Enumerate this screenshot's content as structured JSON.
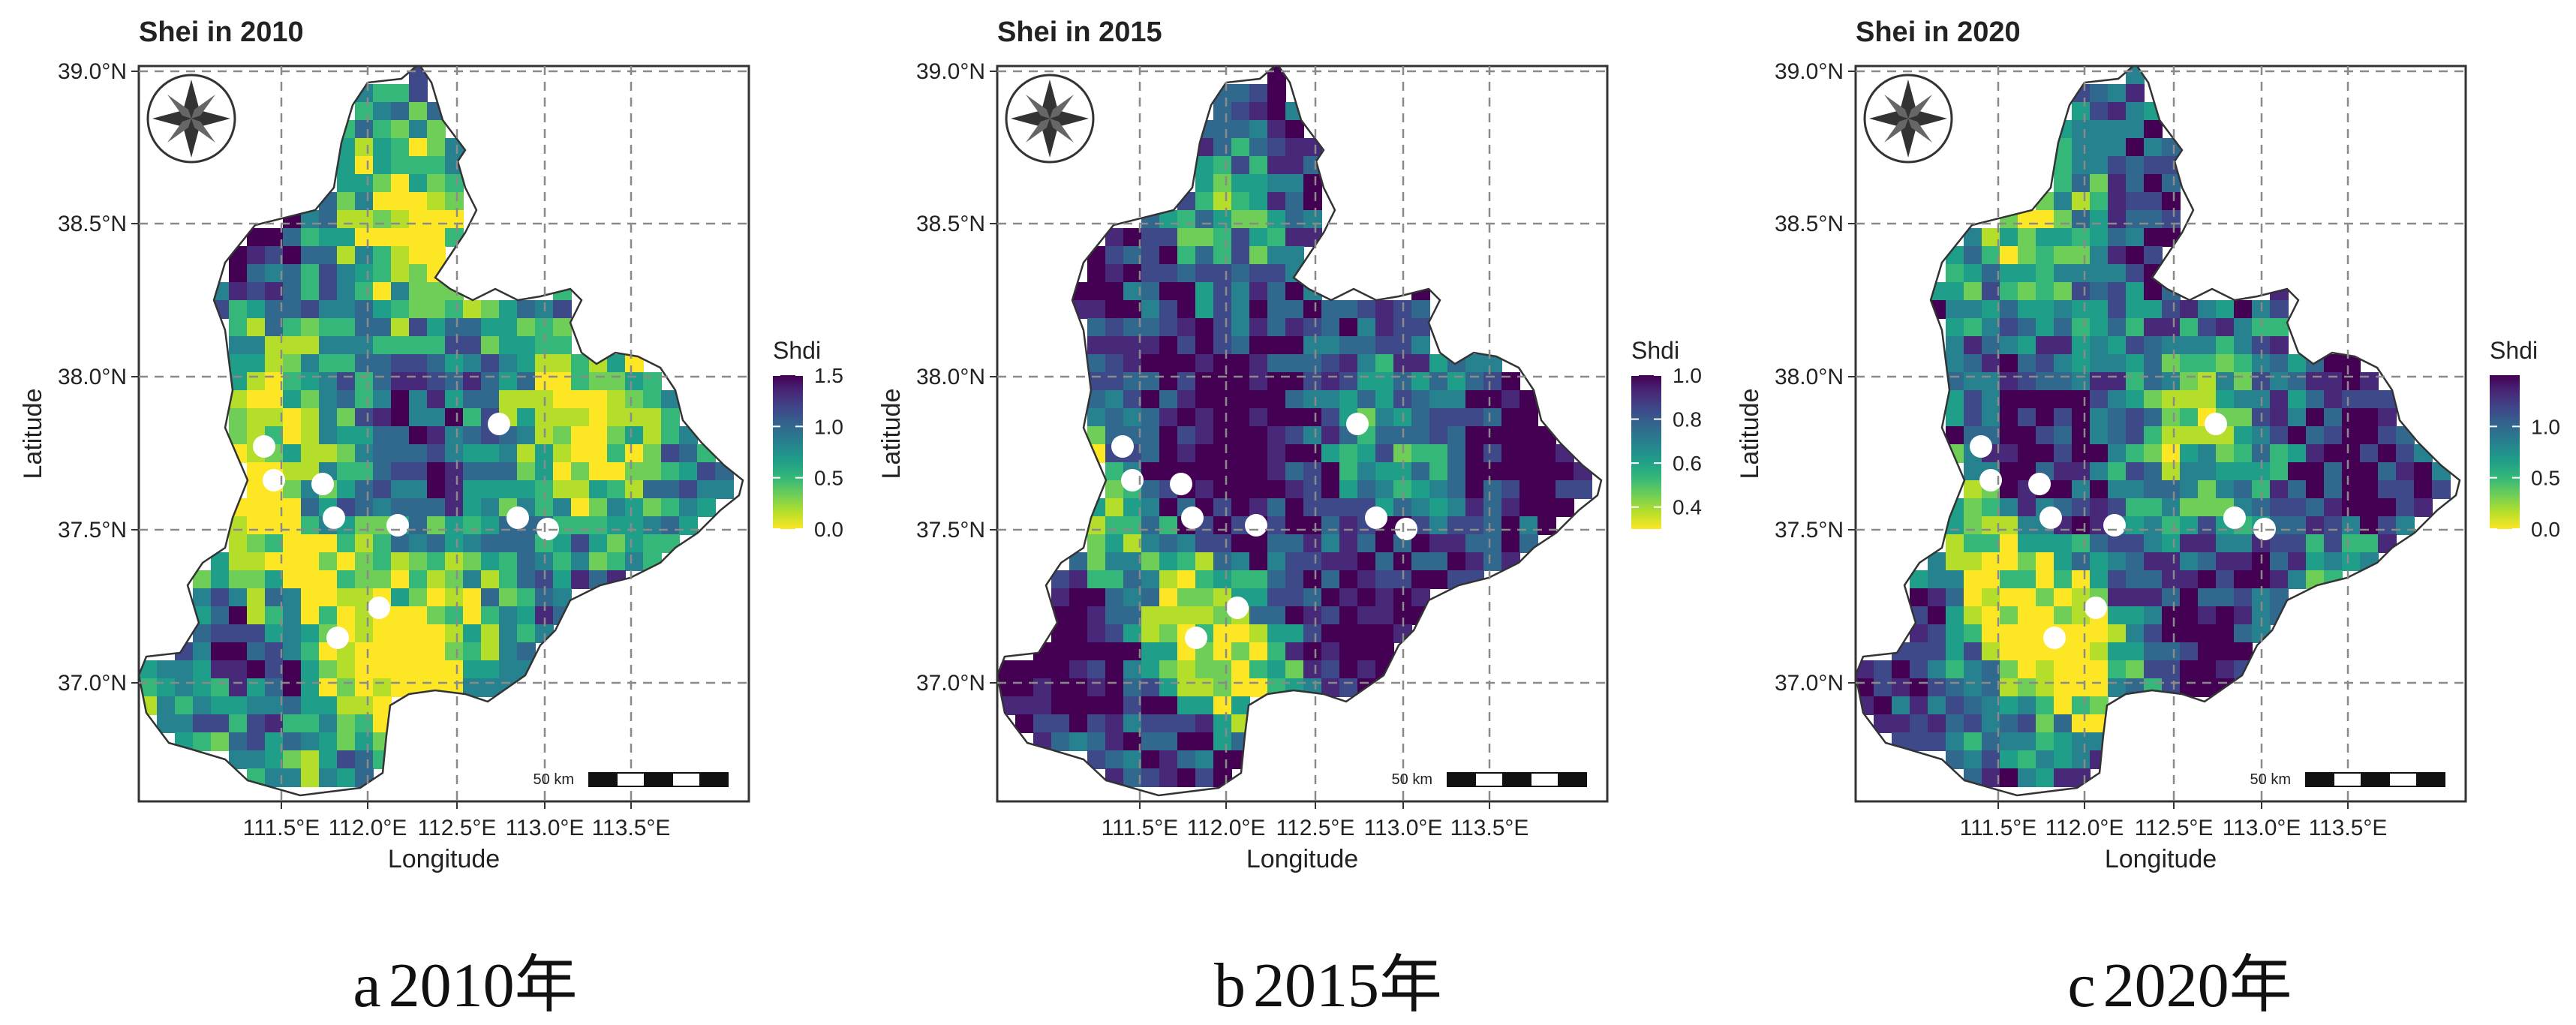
{
  "panels": [
    {
      "title": "Shei in 2010",
      "caption": {
        "letter": "a",
        "text": "2010年"
      },
      "legend": {
        "title": "Shdi",
        "max": 1.5,
        "min": 0.0,
        "ticks": [
          "1.5",
          "1.0",
          "0.5",
          "0.0"
        ]
      },
      "xaxis": {
        "label": "Longitude",
        "ticks": [
          "111.5°E",
          "112.0°E",
          "112.5°E",
          "113.0°E",
          "113.5°E"
        ]
      },
      "yaxis": {
        "label": "Latitude",
        "ticks": [
          "39.0°N",
          "38.5°N",
          "38.0°N",
          "37.5°N",
          "37.0°N"
        ]
      },
      "scalebar": "50 km",
      "palette_bias": 0.45
    },
    {
      "title": "Shei in 2015",
      "caption": {
        "letter": "b",
        "text": "2015年"
      },
      "legend": {
        "title": "Shdi",
        "max": 1.0,
        "min": 0.3,
        "ticks": [
          "1.0",
          "0.8",
          "0.6",
          "0.4"
        ]
      },
      "xaxis": {
        "label": "Longitude",
        "ticks": [
          "111.5°E",
          "112.0°E",
          "112.5°E",
          "113.0°E",
          "113.5°E"
        ]
      },
      "yaxis": {
        "label": "Latitude",
        "ticks": [
          "39.0°N",
          "38.5°N",
          "38.0°N",
          "37.5°N",
          "37.0°N"
        ]
      },
      "scalebar": "50 km",
      "palette_bias": 0.78
    },
    {
      "title": "Shei in 2020",
      "caption": {
        "letter": "c",
        "text": "2020年"
      },
      "legend": {
        "title": "Shdi",
        "max": 1.5,
        "min": 0.0,
        "ticks": [
          "1.0",
          "0.5",
          "0.0"
        ]
      },
      "xaxis": {
        "label": "Longitude",
        "ticks": [
          "111.5°E",
          "112.0°E",
          "112.5°E",
          "113.0°E",
          "113.5°E"
        ]
      },
      "yaxis": {
        "label": "Latitude",
        "ticks": [
          "39.0°N",
          "38.5°N",
          "38.0°N",
          "37.5°N",
          "37.0°N"
        ]
      },
      "scalebar": "50 km",
      "palette_bias": 0.62
    }
  ],
  "colors": {
    "viridis": [
      "#fde725",
      "#b5de2b",
      "#6ece58",
      "#35b779",
      "#1f9e89",
      "#26828e",
      "#31688e",
      "#3e4989",
      "#482878",
      "#440154"
    ],
    "grid": "#8a8a8a",
    "frame": "#333333"
  }
}
